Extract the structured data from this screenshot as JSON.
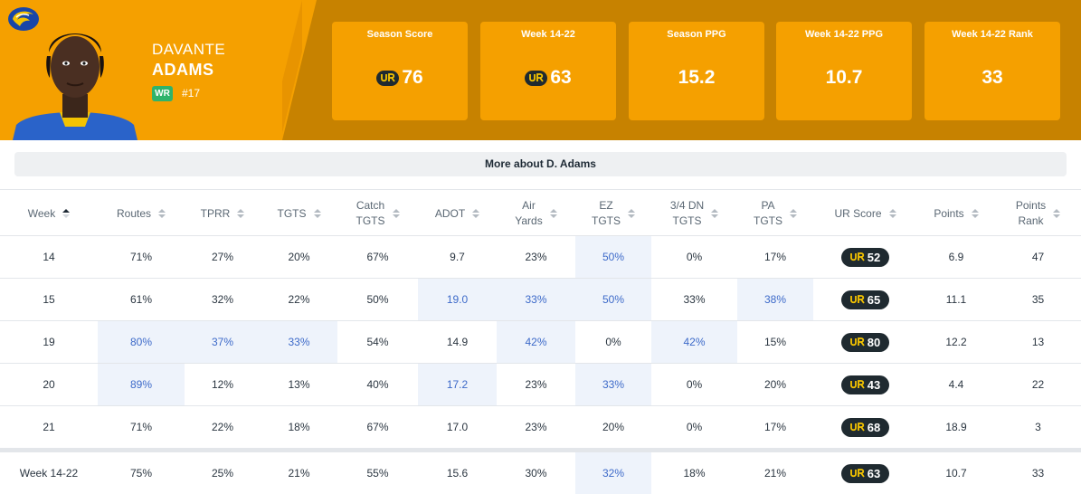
{
  "player": {
    "first_name": "DAVANTE",
    "last_name": "ADAMS",
    "position": "WR",
    "number": "#17"
  },
  "colors": {
    "brand": "#f5a000",
    "brand_dark": "#c78200",
    "position_badge": "#2fb36b",
    "ur_pill": "#1f2a30",
    "highlight_text": "#3d6ac9"
  },
  "stat_cards": [
    {
      "label": "Season Score",
      "value": "76",
      "ur_icon": true
    },
    {
      "label": "Week 14-22",
      "value": "63",
      "ur_icon": true
    },
    {
      "label": "Season PPG",
      "value": "15.2",
      "ur_icon": false
    },
    {
      "label": "Week 14-22 PPG",
      "value": "10.7",
      "ur_icon": false
    },
    {
      "label": "Week 14-22 Rank",
      "value": "33",
      "ur_icon": false
    }
  ],
  "more_about_label": "More about D. Adams",
  "table": {
    "columns": [
      "Week",
      "Routes",
      "TPRR",
      "TGTS",
      "Catch TGTS",
      "ADOT",
      "Air Yards",
      "EZ TGTS",
      "3/4 DN TGTS",
      "PA TGTS",
      "UR Score",
      "Points",
      "Points Rank"
    ],
    "column_lines": [
      [
        "Week"
      ],
      [
        "Routes"
      ],
      [
        "TPRR"
      ],
      [
        "TGTS"
      ],
      [
        "Catch",
        "TGTS"
      ],
      [
        "ADOT"
      ],
      [
        "Air",
        "Yards"
      ],
      [
        "EZ",
        "TGTS"
      ],
      [
        "3/4 DN",
        "TGTS"
      ],
      [
        "PA",
        "TGTS"
      ],
      [
        "UR Score"
      ],
      [
        "Points"
      ],
      [
        "Points",
        "Rank"
      ]
    ],
    "sorted_column": "Week",
    "rows": [
      {
        "cells": [
          "14",
          "71%",
          "27%",
          "20%",
          "67%",
          "9.7",
          "23%",
          "50%",
          "0%",
          "17%",
          "52",
          "6.9",
          "47"
        ],
        "highlighted": [
          7
        ]
      },
      {
        "cells": [
          "15",
          "61%",
          "32%",
          "22%",
          "50%",
          "19.0",
          "33%",
          "50%",
          "33%",
          "38%",
          "65",
          "11.1",
          "35"
        ],
        "highlighted": [
          5,
          6,
          7,
          9
        ]
      },
      {
        "cells": [
          "19",
          "80%",
          "37%",
          "33%",
          "54%",
          "14.9",
          "42%",
          "0%",
          "42%",
          "15%",
          "80",
          "12.2",
          "13"
        ],
        "highlighted": [
          1,
          2,
          3,
          6,
          8
        ]
      },
      {
        "cells": [
          "20",
          "89%",
          "12%",
          "13%",
          "40%",
          "17.2",
          "23%",
          "33%",
          "0%",
          "20%",
          "43",
          "4.4",
          "22"
        ],
        "highlighted": [
          1,
          5,
          7
        ]
      },
      {
        "cells": [
          "21",
          "71%",
          "22%",
          "18%",
          "67%",
          "17.0",
          "23%",
          "20%",
          "0%",
          "17%",
          "68",
          "18.9",
          "3"
        ],
        "highlighted": []
      }
    ],
    "summary": {
      "cells": [
        "Week 14-22",
        "75%",
        "25%",
        "21%",
        "55%",
        "15.6",
        "30%",
        "32%",
        "18%",
        "21%",
        "63",
        "10.7",
        "33"
      ],
      "highlighted": [
        7
      ]
    }
  }
}
